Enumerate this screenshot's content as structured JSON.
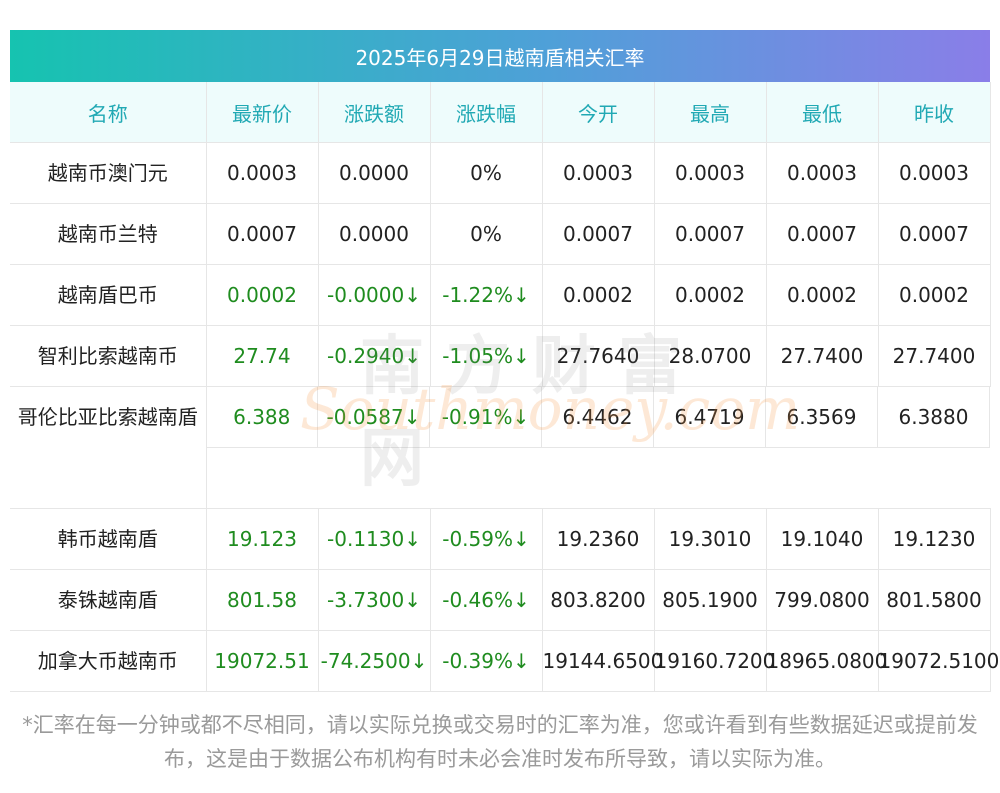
{
  "title": "2025年6月29日越南盾相关汇率",
  "headers": [
    "名称",
    "最新价",
    "涨跌额",
    "涨跌幅",
    "今开",
    "最高",
    "最低",
    "昨收"
  ],
  "rows": [
    {
      "name": "越南币澳门元",
      "last": "0.0003",
      "chg": "0.0000",
      "pct": "0%",
      "open": "0.0003",
      "high": "0.0003",
      "low": "0.0003",
      "prev": "0.0003",
      "green": false
    },
    {
      "name": "越南币兰特",
      "last": "0.0007",
      "chg": "0.0000",
      "pct": "0%",
      "open": "0.0007",
      "high": "0.0007",
      "low": "0.0007",
      "prev": "0.0007",
      "green": false
    },
    {
      "name": "越南盾巴币",
      "last": "0.0002",
      "chg": "-0.0000↓",
      "pct": "-1.22%↓",
      "open": "0.0002",
      "high": "0.0002",
      "low": "0.0002",
      "prev": "0.0002",
      "green": true
    },
    {
      "name": "智利比索越南币",
      "last": "27.74",
      "chg": "-0.2940↓",
      "pct": "-1.05%↓",
      "open": "27.7640",
      "high": "28.0700",
      "low": "27.7400",
      "prev": "27.7400",
      "green": true
    },
    {
      "name": "哥伦比亚比索越南盾",
      "last": "6.388",
      "chg": "-0.0587↓",
      "pct": "-0.91%↓",
      "open": "6.4462",
      "high": "6.4719",
      "low": "6.3569",
      "prev": "6.3880",
      "green": true
    },
    {
      "name": "韩币越南盾",
      "last": "19.123",
      "chg": "-0.1130↓",
      "pct": "-0.59%↓",
      "open": "19.2360",
      "high": "19.3010",
      "low": "19.1040",
      "prev": "19.1230",
      "green": true
    },
    {
      "name": "泰铢越南盾",
      "last": "801.58",
      "chg": "-3.7300↓",
      "pct": "-0.46%↓",
      "open": "803.8200",
      "high": "805.1900",
      "low": "799.0800",
      "prev": "801.5800",
      "green": true
    },
    {
      "name": "加拿大币越南币",
      "last": "19072.51",
      "chg": "-74.2500↓",
      "pct": "-0.39%↓",
      "open": "19144.6500",
      "high": "19160.7200",
      "low": "18965.0800",
      "prev": "19072.5100",
      "green": true
    }
  ],
  "watermark": {
    "cn": "南方财富网",
    "en": "Southmoney.com"
  },
  "footnote": "*汇率在每一分钟或都不尽相同，请以实际兑换或交易时的汇率为准，您或许看到有些数据延迟或提前发布，这是由于数据公布机构有时未必会准时发布所导致，请以实际为准。",
  "colors": {
    "header_text": "#21a9b4",
    "header_bg": "#eefcfc",
    "green": "#1f8c1f",
    "gradient_start": "#16c3b0",
    "gradient_end": "#8a7ee8"
  }
}
